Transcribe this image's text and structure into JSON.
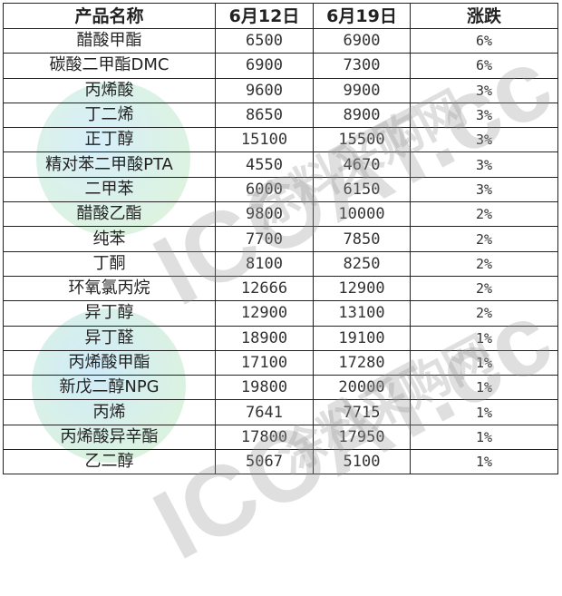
{
  "table": {
    "headers": [
      "产品名称",
      "6月12日",
      "6月19日",
      "涨跌"
    ],
    "rows": [
      [
        "醋酸甲酯",
        "6500",
        "6900",
        "6%"
      ],
      [
        "碳酸二甲酯DMC",
        "6900",
        "7300",
        "6%"
      ],
      [
        "丙烯酸",
        "9600",
        "9900",
        "3%"
      ],
      [
        "丁二烯",
        "8650",
        "8900",
        "3%"
      ],
      [
        "正丁醇",
        "15100",
        "15500",
        "3%"
      ],
      [
        "精对苯二甲酸PTA",
        "4550",
        "4670",
        "3%"
      ],
      [
        "二甲苯",
        "6000",
        "6150",
        "3%"
      ],
      [
        "醋酸乙酯",
        "9800",
        "10000",
        "2%"
      ],
      [
        "纯苯",
        "7700",
        "7850",
        "2%"
      ],
      [
        "丁酮",
        "8100",
        "8250",
        "2%"
      ],
      [
        "环氧氯丙烷",
        "12666",
        "12900",
        "2%"
      ],
      [
        "异丁醇",
        "12900",
        "13100",
        "2%"
      ],
      [
        "异丁醛",
        "18900",
        "19100",
        "1%"
      ],
      [
        "丙烯酸甲酯",
        "17100",
        "17280",
        "1%"
      ],
      [
        "新戊二醇NPG",
        "19800",
        "20000",
        "1%"
      ],
      [
        "丙烯",
        "7641",
        "7715",
        "1%"
      ],
      [
        "丙烯酸异辛酯",
        "17800",
        "17950",
        "1%"
      ],
      [
        "乙二醇",
        "5067",
        "5100",
        "1%"
      ]
    ]
  },
  "watermark": {
    "logo": "ICOAT.cc",
    "subtitle": "涂料采购网"
  }
}
